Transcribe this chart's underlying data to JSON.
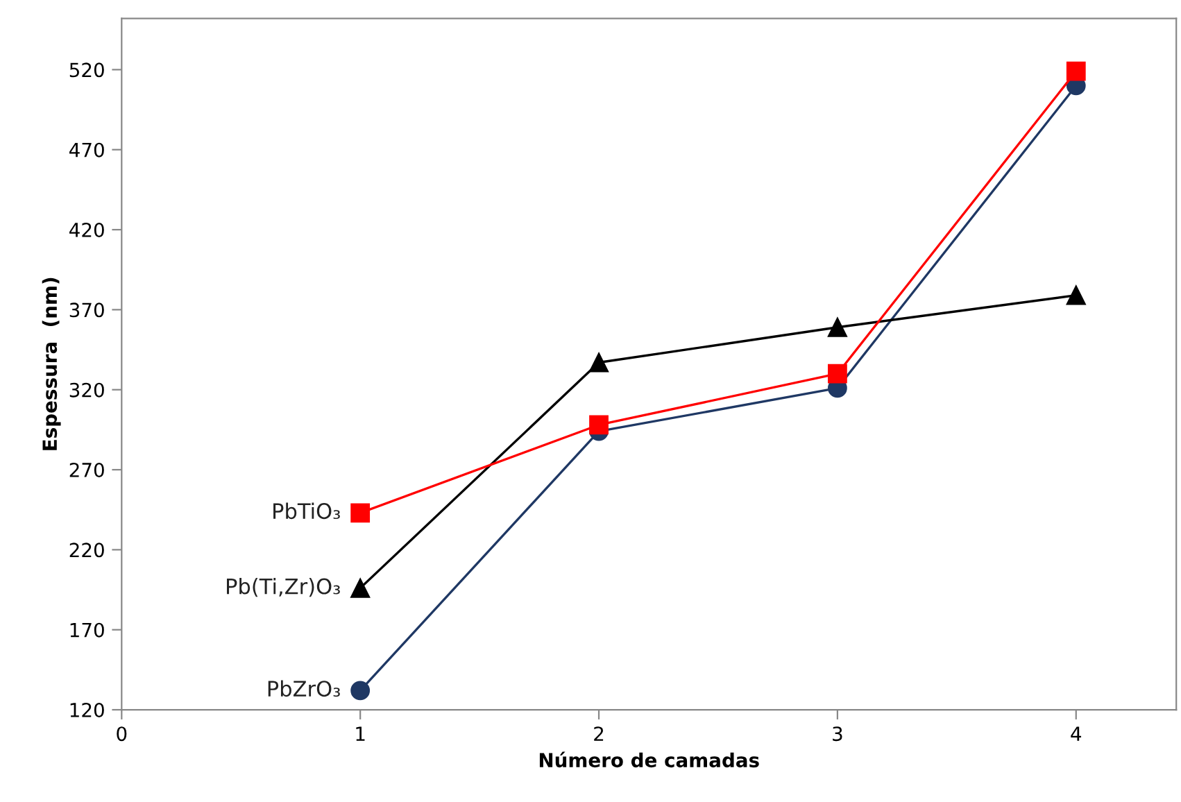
{
  "chart_data": {
    "type": "line",
    "xlabel": "Número de camadas",
    "ylabel": "Espessura  (nm)",
    "x": [
      1,
      2,
      3,
      4
    ],
    "series": [
      {
        "name": "PbTiO₃",
        "color": "#ff0000",
        "marker": "square",
        "values": [
          243,
          298,
          330,
          519
        ]
      },
      {
        "name": "Pb(Ti,Zr)O₃",
        "color": "#000000",
        "marker": "triangle",
        "values": [
          196,
          337,
          359,
          379
        ]
      },
      {
        "name": "PbZrO₃",
        "color": "#1f3864",
        "marker": "circle",
        "values": [
          132,
          294,
          321,
          510
        ]
      }
    ],
    "xlim": [
      0,
      4.42
    ],
    "xticks": [
      0,
      1,
      2,
      3,
      4
    ],
    "ylim": [
      120,
      552
    ],
    "yticks": [
      120,
      170,
      220,
      270,
      320,
      370,
      420,
      470,
      520
    ],
    "grid": false,
    "legend": false,
    "line_style": "solid"
  }
}
